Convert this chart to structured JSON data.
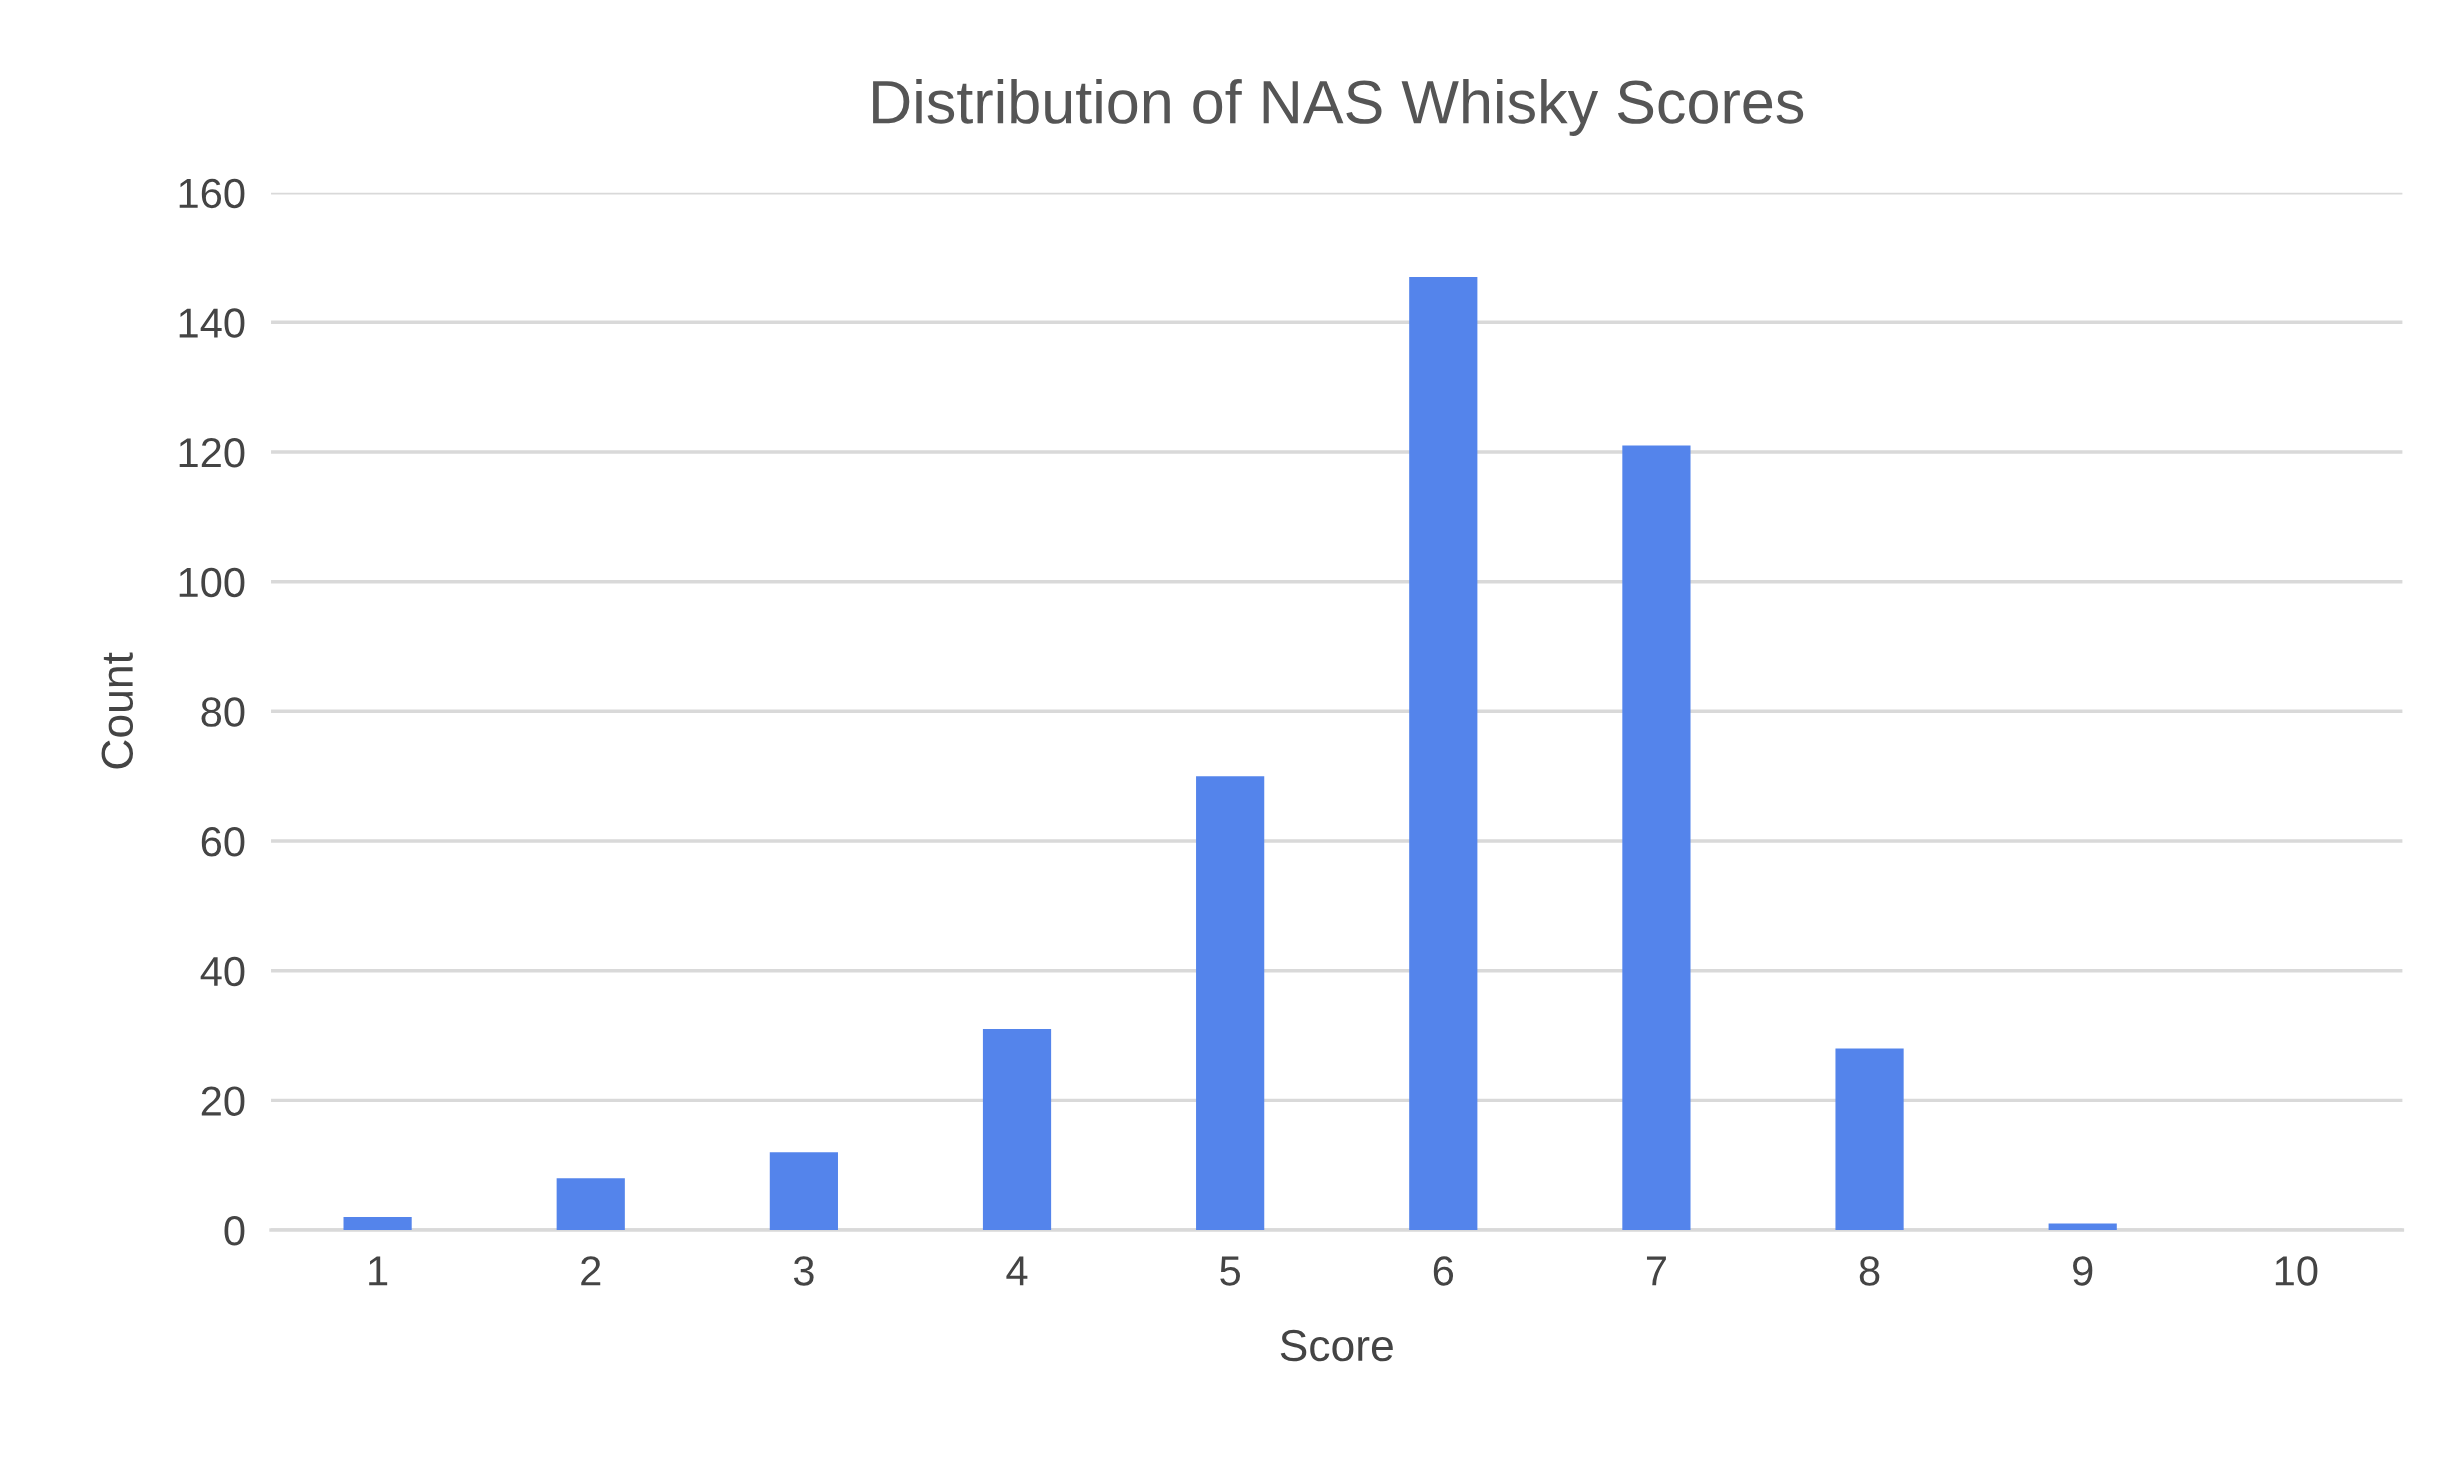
{
  "chart_data": {
    "type": "bar",
    "title": "Distribution of NAS Whisky Scores",
    "xlabel": "Score",
    "ylabel": "Count",
    "categories": [
      "1",
      "2",
      "3",
      "4",
      "5",
      "6",
      "7",
      "8",
      "9",
      "10"
    ],
    "values": [
      2,
      8,
      12,
      31,
      70,
      147,
      121,
      28,
      1,
      0
    ],
    "color": "#5484eb",
    "ylim": [
      0,
      160
    ],
    "yticks": [
      0,
      20,
      40,
      60,
      80,
      100,
      120,
      140,
      160
    ],
    "grid": "y",
    "legend": false
  }
}
